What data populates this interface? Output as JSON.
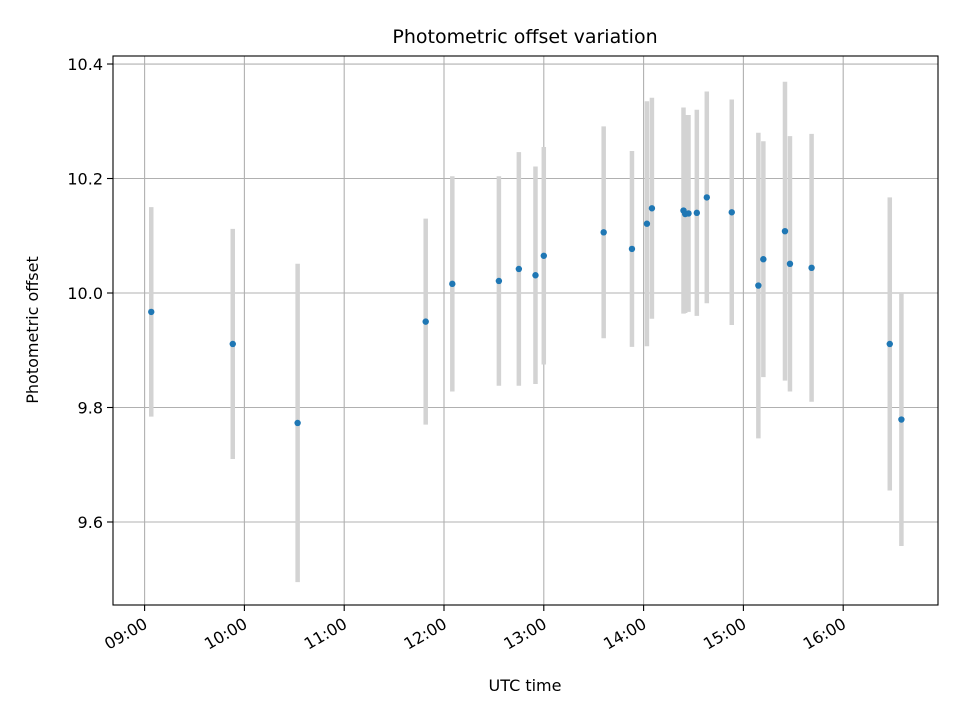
{
  "chart_data": {
    "type": "scatter",
    "title": "Photometric offset variation",
    "xlabel": "UTC time",
    "ylabel": "Photometric offset",
    "x_ticks": [
      "09:00",
      "10:00",
      "11:00",
      "12:00",
      "13:00",
      "14:00",
      "15:00",
      "16:00"
    ],
    "y_ticks": [
      "9.6",
      "9.8",
      "10.0",
      "10.2",
      "10.4"
    ],
    "xlim": [
      "08:41",
      "16:57"
    ],
    "ylim": [
      9.455,
      10.414
    ],
    "grid": true,
    "colors": {
      "points": "#1f77b4",
      "errorbars": "#d3d3d3",
      "grid": "#b0b0b0",
      "axes": "#000000"
    },
    "points": [
      {
        "t": "09:04",
        "y": 9.967,
        "err": 0.183
      },
      {
        "t": "09:53",
        "y": 9.911,
        "err": 0.201
      },
      {
        "t": "10:32",
        "y": 9.773,
        "err": 0.278
      },
      {
        "t": "11:49",
        "y": 9.95,
        "err": 0.18
      },
      {
        "t": "12:05",
        "y": 10.016,
        "err": 0.188
      },
      {
        "t": "12:33",
        "y": 10.021,
        "err": 0.183
      },
      {
        "t": "12:45",
        "y": 10.042,
        "err": 0.204
      },
      {
        "t": "12:55",
        "y": 10.031,
        "err": 0.19
      },
      {
        "t": "13:00",
        "y": 10.065,
        "err": 0.19
      },
      {
        "t": "13:36",
        "y": 10.106,
        "err": 0.185
      },
      {
        "t": "13:53",
        "y": 10.077,
        "err": 0.171
      },
      {
        "t": "14:02",
        "y": 10.121,
        "err": 0.214
      },
      {
        "t": "14:05",
        "y": 10.148,
        "err": 0.193
      },
      {
        "t": "14:24",
        "y": 10.144,
        "err": 0.18
      },
      {
        "t": "14:25",
        "y": 10.138,
        "err": 0.173
      },
      {
        "t": "14:27",
        "y": 10.139,
        "err": 0.172
      },
      {
        "t": "14:32",
        "y": 10.14,
        "err": 0.18
      },
      {
        "t": "14:38",
        "y": 10.167,
        "err": 0.185
      },
      {
        "t": "14:53",
        "y": 10.141,
        "err": 0.197
      },
      {
        "t": "15:09",
        "y": 10.013,
        "err": 0.267
      },
      {
        "t": "15:12",
        "y": 10.059,
        "err": 0.206
      },
      {
        "t": "15:25",
        "y": 10.108,
        "err": 0.261
      },
      {
        "t": "15:28",
        "y": 10.051,
        "err": 0.223
      },
      {
        "t": "15:41",
        "y": 10.044,
        "err": 0.234
      },
      {
        "t": "16:28",
        "y": 9.911,
        "err": 0.256
      },
      {
        "t": "16:35",
        "y": 9.779,
        "err": 0.221
      }
    ]
  }
}
